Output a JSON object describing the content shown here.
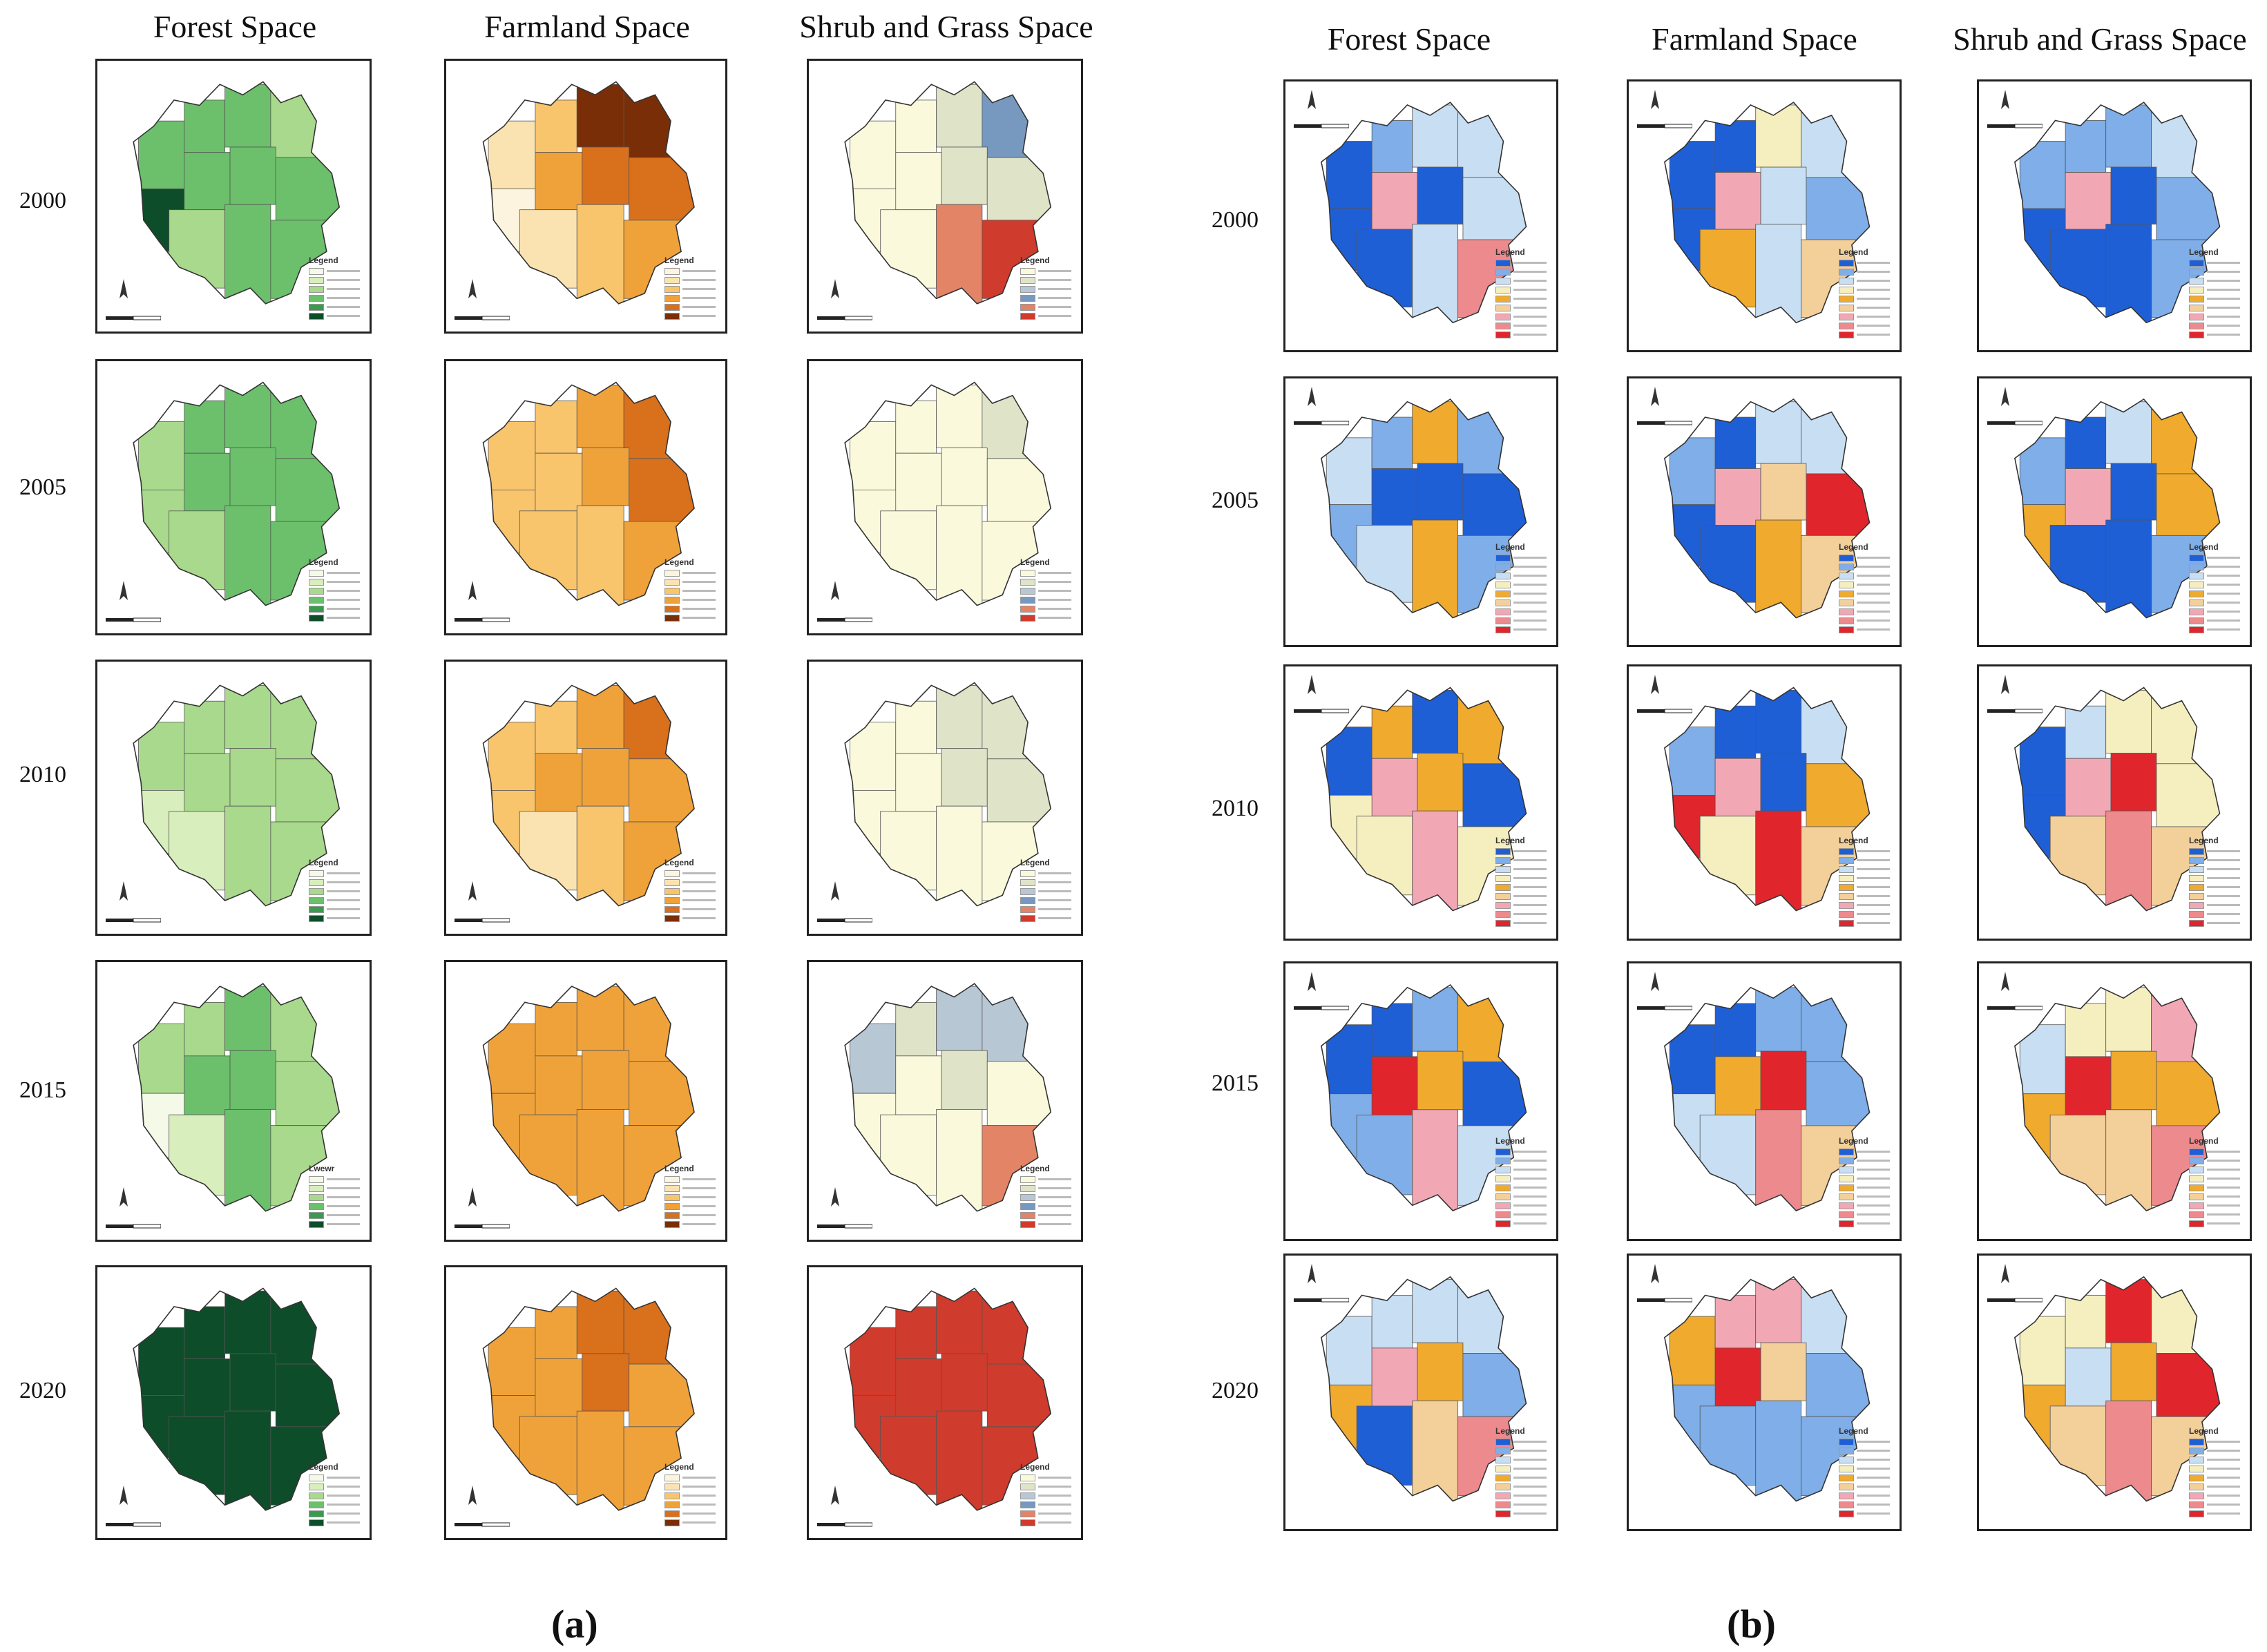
{
  "part_a": {
    "caption": "(a)",
    "columns": [
      "Forest Space",
      "Farmland Space",
      "Shrub and Grass Space"
    ],
    "years": [
      "2000",
      "2005",
      "2010",
      "2015",
      "2020"
    ],
    "legend_title": "Legend",
    "legend_title_variant": "Lwewr",
    "colors": {
      "forest": [
        "#f4f9e8",
        "#d8eebc",
        "#a8d98c",
        "#6cc06c",
        "#3a9a4e",
        "#0e4d2a"
      ],
      "farmland": [
        "#fdf4df",
        "#fbe3b1",
        "#f8c46c",
        "#f0a23a",
        "#d9701c",
        "#7a2e07"
      ],
      "shrub": [
        "#fbf9dc",
        "#dfe3c8",
        "#b8c7d4",
        "#7798bf",
        "#e38467",
        "#cf3b2c"
      ]
    }
  },
  "part_b": {
    "caption": "(b)",
    "columns": [
      "Forest Space",
      "Farmland Space",
      "Shrub and Grass Space"
    ],
    "years": [
      "2000",
      "2005",
      "2010",
      "2015",
      "2020"
    ],
    "legend_title": "Legend",
    "lisa_colors": {
      "low_low": "#1f5fd6",
      "low_medium": "#7faee8",
      "low_high": "#c8def3",
      "medium_low": "#f5efbf",
      "medium_medium": "#f0aa2e",
      "medium_high": "#f3cf9a",
      "high_low": "#f2a7b4",
      "high_medium": "#ec8a8d",
      "high_high": "#e0262c"
    }
  }
}
